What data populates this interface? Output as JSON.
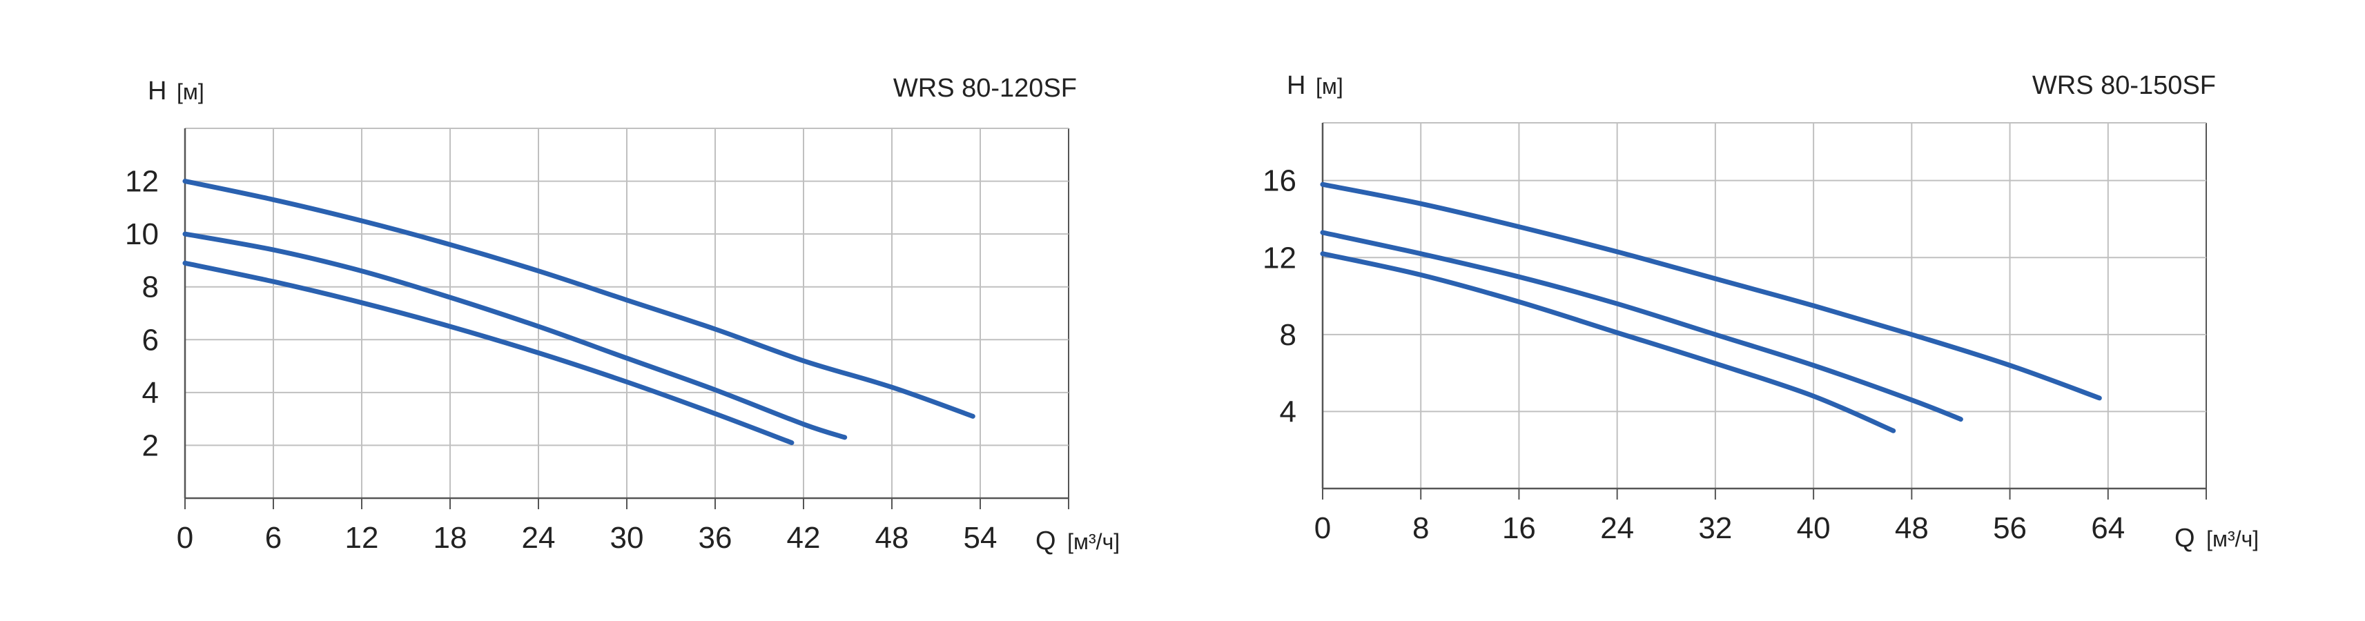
{
  "colors": {
    "curve": "#2a61b0",
    "grid": "#c0c0c0",
    "axis": "#555555",
    "text": "#222222"
  },
  "chart_data": [
    {
      "type": "line",
      "title": "WRS 80-120SF",
      "ylabel_main": "H",
      "ylabel_unit": "[м]",
      "xlabel_main": "Q",
      "xlabel_unit": "[м³/ч]",
      "xlim": [
        0,
        60
      ],
      "ylim": [
        0,
        14
      ],
      "x_ticks": [
        "0",
        "6",
        "12",
        "18",
        "24",
        "30",
        "36",
        "42",
        "48",
        "54"
      ],
      "y_ticks": [
        "2",
        "4",
        "6",
        "8",
        "10",
        "12"
      ],
      "grid": true,
      "series": [
        {
          "x": [
            0,
            6,
            12,
            18,
            24,
            30,
            36,
            42,
            48,
            53.5
          ],
          "y": [
            12.0,
            11.3,
            10.5,
            9.6,
            8.6,
            7.5,
            6.4,
            5.2,
            4.2,
            3.1
          ]
        },
        {
          "x": [
            0,
            6,
            12,
            18,
            24,
            30,
            36,
            42,
            44.8
          ],
          "y": [
            10.0,
            9.4,
            8.6,
            7.6,
            6.5,
            5.3,
            4.1,
            2.8,
            2.3
          ]
        },
        {
          "x": [
            0,
            6,
            12,
            18,
            24,
            30,
            36,
            41.2
          ],
          "y": [
            8.9,
            8.2,
            7.4,
            6.5,
            5.5,
            4.4,
            3.2,
            2.1
          ]
        }
      ]
    },
    {
      "type": "line",
      "title": "WRS 80-150SF",
      "ylabel_main": "H",
      "ylabel_unit": "[м]",
      "xlabel_main": "Q",
      "xlabel_unit": "[м³/ч]",
      "xlim": [
        0,
        72
      ],
      "ylim": [
        0,
        19
      ],
      "x_ticks": [
        "0",
        "8",
        "16",
        "24",
        "32",
        "40",
        "48",
        "56",
        "64"
      ],
      "y_ticks": [
        "4",
        "8",
        "12",
        "16"
      ],
      "grid": true,
      "series": [
        {
          "x": [
            0,
            8,
            16,
            24,
            32,
            40,
            48,
            56,
            63.3
          ],
          "y": [
            15.8,
            14.8,
            13.6,
            12.3,
            10.9,
            9.5,
            8.0,
            6.4,
            4.7
          ]
        },
        {
          "x": [
            0,
            8,
            16,
            24,
            32,
            40,
            48,
            52
          ],
          "y": [
            13.3,
            12.2,
            11.0,
            9.6,
            8.0,
            6.4,
            4.6,
            3.6
          ]
        },
        {
          "x": [
            0,
            8,
            16,
            24,
            32,
            40,
            46.5
          ],
          "y": [
            12.2,
            11.1,
            9.7,
            8.1,
            6.5,
            4.8,
            3.0
          ]
        }
      ]
    }
  ]
}
